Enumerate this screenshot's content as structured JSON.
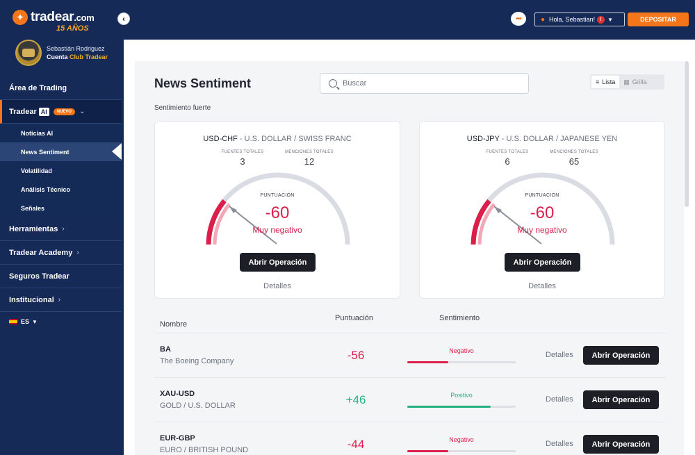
{
  "brand": {
    "name": "tradear",
    "tld": ".com",
    "years": "15 AÑOS",
    "logo_icon": "bull-logo-icon"
  },
  "profile": {
    "name": "Sebastián Rodriguez",
    "account_prefix": "Cuenta",
    "account_club": "Club Tradear"
  },
  "sidebar": {
    "items": [
      {
        "label": "Área de Trading"
      },
      {
        "label": "Tradear",
        "ai": "AI",
        "badge": "NUEVO"
      },
      {
        "label": "Herramientas"
      },
      {
        "label": "Tradear Academy"
      },
      {
        "label": "Seguros Tradear"
      },
      {
        "label": "Institucional"
      }
    ],
    "subitems": [
      {
        "label": "Noticias AI"
      },
      {
        "label": "News Sentiment"
      },
      {
        "label": "Volatilidad"
      },
      {
        "label": "Análisis Técnico"
      },
      {
        "label": "Señales"
      }
    ],
    "language": "ES"
  },
  "topbar": {
    "greeting": "Hola, Sebastian!",
    "notifications": "!",
    "deposit": "DEPOSITAR"
  },
  "page": {
    "title": "News Sentiment",
    "search_placeholder": "Buscar",
    "view_list": "Lista",
    "view_grid": "Grilla",
    "section": "Sentimiento fuerte"
  },
  "cards": [
    {
      "symbol": "USD-CHF",
      "name": "U.S. DOLLAR / SWISS FRANC",
      "sources_label": "FUENTES TOTALES",
      "sources": "3",
      "mentions_label": "MENCIONES TOTALES",
      "mentions": "12",
      "score_label": "PUNTUACIÓN",
      "score": "-60",
      "score_value": -60,
      "sentiment": "Muy negativo",
      "button": "Abrir Operación",
      "details": "Detalles"
    },
    {
      "symbol": "USD-JPY",
      "name": "U.S. DOLLAR / JAPANESE YEN",
      "sources_label": "FUENTES TOTALES",
      "sources": "6",
      "mentions_label": "MENCIONES TOTALES",
      "mentions": "65",
      "score_label": "PUNTUACIÓN",
      "score": "-60",
      "score_value": -60,
      "sentiment": "Muy negativo",
      "button": "Abrir Operación",
      "details": "Detalles"
    }
  ],
  "table": {
    "headers": {
      "name": "Nombre",
      "score": "Puntuación",
      "sentiment": "Sentimiento"
    },
    "rows": [
      {
        "symbol": "BA",
        "name": "The Boeing Company",
        "score": "-56",
        "sentiment": "Negativo",
        "level": 0.38,
        "color": "#dc1f4a",
        "details": "Detalles",
        "button": "Abrir Operación"
      },
      {
        "symbol": "XAU-USD",
        "name": "GOLD / U.S. DOLLAR",
        "score": "+46",
        "sentiment": "Positivo",
        "level": 0.77,
        "color": "#23b07d",
        "details": "Detalles",
        "button": "Abrir Operación"
      },
      {
        "symbol": "EUR-GBP",
        "name": "EURO / BRITISH POUND",
        "score": "-44",
        "sentiment": "Negativo",
        "level": 0.38,
        "color": "#dc1f4a",
        "details": "Detalles",
        "button": "Abrir Operación"
      }
    ]
  },
  "colors": {
    "navy": "#152a57",
    "accent": "#f5761a",
    "negative": "#dc1f4a",
    "positive": "#23b07d"
  }
}
